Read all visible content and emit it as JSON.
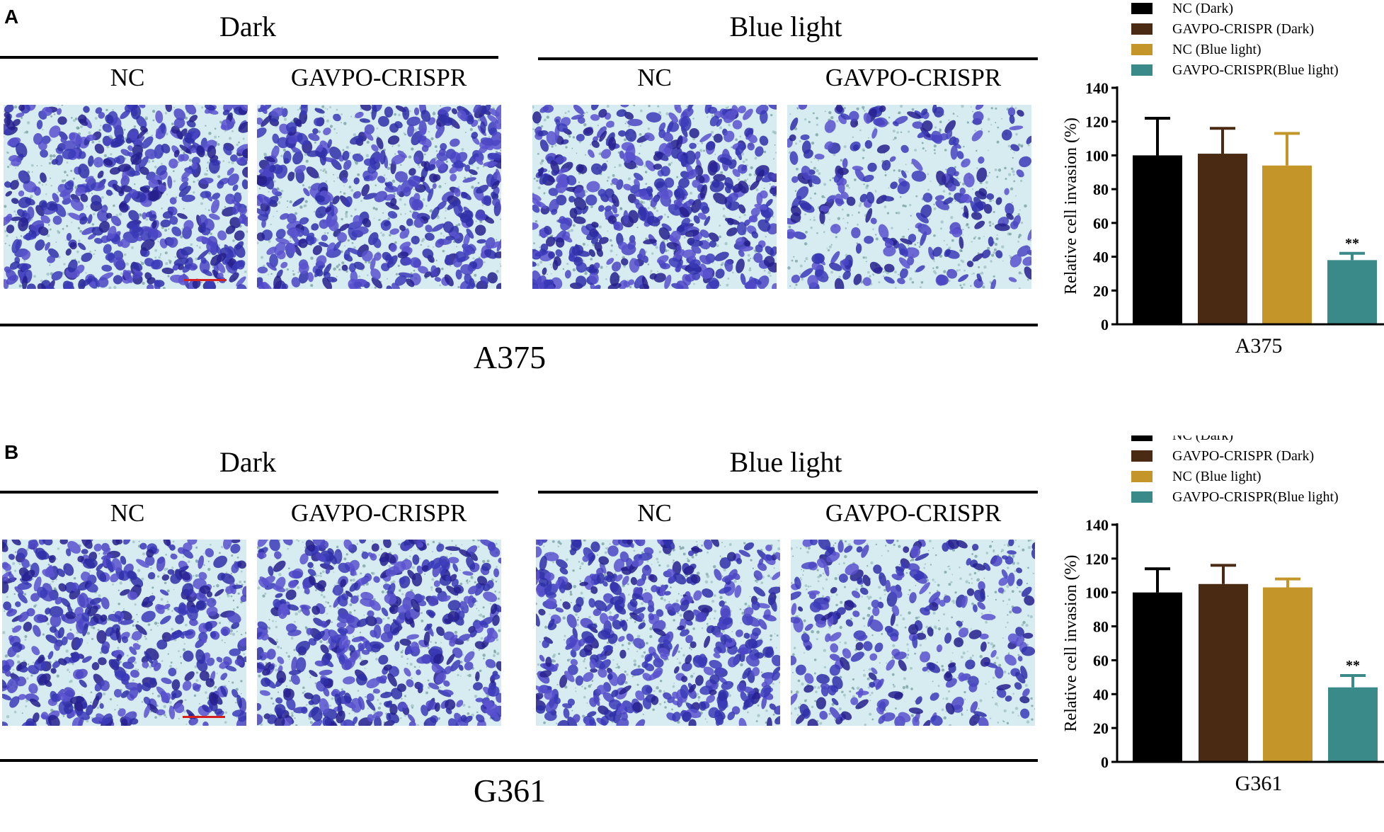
{
  "panels": [
    {
      "letter": "A",
      "groups": [
        {
          "title": "Dark",
          "labels": [
            "NC",
            "GAVPO-CRISPR"
          ]
        },
        {
          "title": "Blue light",
          "labels": [
            "NC",
            "GAVPO-CRISPR"
          ]
        }
      ],
      "cell_line": "A375",
      "micrograph_density": [
        0.95,
        0.9,
        0.92,
        0.45
      ]
    },
    {
      "letter": "B",
      "groups": [
        {
          "title": "Dark",
          "labels": [
            "NC",
            "GAVPO-CRISPR"
          ]
        },
        {
          "title": "Blue light",
          "labels": [
            "NC",
            "GAVPO-CRISPR"
          ]
        }
      ],
      "cell_line": "G361",
      "micrograph_density": [
        0.85,
        0.92,
        0.9,
        0.5
      ]
    }
  ],
  "colors": {
    "nc_dark": "#000000",
    "gavpo_dark": "#4a2a12",
    "nc_blue": "#c4962a",
    "gavpo_blue": "#3a8a8a",
    "stain": "#3a3ab8",
    "background_field": "#d6ecf0"
  },
  "chart_data": [
    {
      "type": "bar",
      "categories": [
        "NC (Dark)",
        "GAVPO-CRISPR (Dark)",
        "NC (Blue light)",
        "GAVPO-CRISPR(Blue light)"
      ],
      "values": [
        100,
        101,
        94,
        38
      ],
      "errors": [
        22,
        15,
        19,
        4
      ],
      "significance": [
        "",
        "",
        "",
        "**"
      ],
      "xlabel": "A375",
      "ylabel": "Relative cell invasion (%)",
      "ylim": [
        0,
        140
      ],
      "yticks": [
        0,
        20,
        40,
        60,
        80,
        100,
        120,
        140
      ],
      "legend": "top",
      "grid": false
    },
    {
      "type": "bar",
      "categories": [
        "NC (Dark)",
        "GAVPO-CRISPR (Dark)",
        "NC (Blue light)",
        "GAVPO-CRISPR(Blue light)"
      ],
      "values": [
        100,
        105,
        103,
        44
      ],
      "errors": [
        14,
        11,
        5,
        7
      ],
      "significance": [
        "",
        "",
        "",
        "**"
      ],
      "xlabel": "G361",
      "ylabel": "Relative cell invasion (%)",
      "ylim": [
        0,
        140
      ],
      "yticks": [
        0,
        20,
        40,
        60,
        80,
        100,
        120,
        140
      ],
      "legend": "top",
      "grid": false
    }
  ]
}
